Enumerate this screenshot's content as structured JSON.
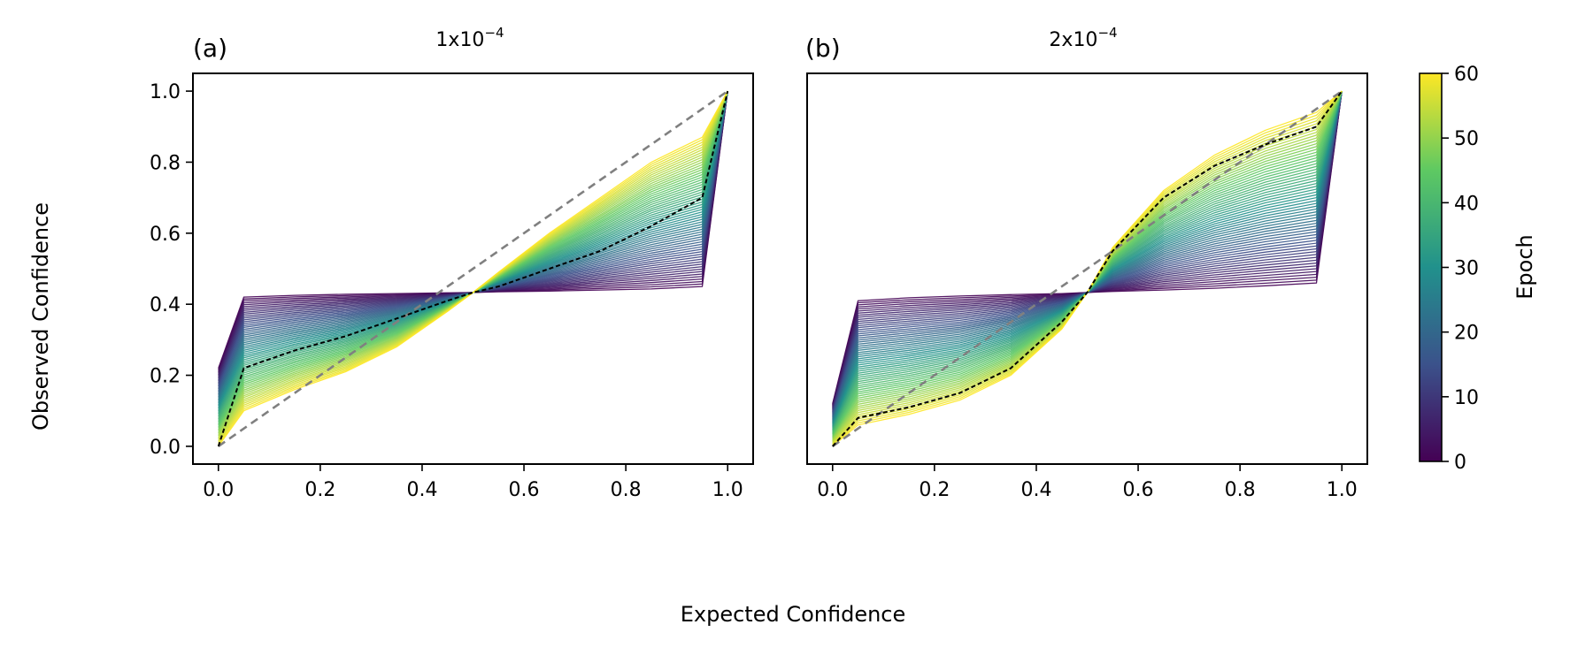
{
  "figure": {
    "xlabel": "Expected Confidence",
    "ylabel": "Observed Confidence"
  },
  "colorbar": {
    "label": "Epoch",
    "range": [
      0,
      60
    ],
    "ticks": [
      0,
      10,
      20,
      30,
      40,
      50,
      60
    ],
    "colormap": "viridis",
    "colors": [
      "#440154",
      "#3b528b",
      "#21918c",
      "#5ec962",
      "#fde725"
    ]
  },
  "chart_data": [
    {
      "type": "line",
      "panel_label": "(a)",
      "title_mantissa": "1x10",
      "title_exponent": "−4",
      "xlim": [
        -0.05,
        1.05
      ],
      "ylim": [
        -0.05,
        1.05
      ],
      "xticks": [
        0.0,
        0.2,
        0.4,
        0.6,
        0.8,
        1.0
      ],
      "yticks": [
        0.0,
        0.2,
        0.4,
        0.6,
        0.8,
        1.0
      ],
      "x": [
        0.0,
        0.05,
        0.15,
        0.25,
        0.35,
        0.45,
        0.5,
        0.55,
        0.65,
        0.75,
        0.85,
        0.95,
        1.0
      ],
      "series_count": 61,
      "epoch_first": {
        "epoch": 0,
        "values": [
          0.22,
          0.42,
          0.425,
          0.428,
          0.43,
          0.432,
          0.433,
          0.435,
          0.437,
          0.44,
          0.443,
          0.45,
          1.0
        ]
      },
      "epoch_last": {
        "epoch": 60,
        "values": [
          0.0,
          0.1,
          0.16,
          0.21,
          0.28,
          0.38,
          0.433,
          0.49,
          0.6,
          0.7,
          0.8,
          0.87,
          1.0
        ]
      },
      "reference_line": {
        "style": "dashed",
        "color": "#808080",
        "values": [
          0.0,
          0.05,
          0.15,
          0.25,
          0.35,
          0.45,
          0.5,
          0.55,
          0.65,
          0.75,
          0.85,
          0.95,
          1.0
        ]
      },
      "highlight_line": {
        "style": "dashed",
        "color": "#000000",
        "values": [
          0.0,
          0.22,
          0.27,
          0.31,
          0.36,
          0.41,
          0.433,
          0.45,
          0.5,
          0.55,
          0.62,
          0.7,
          1.0
        ]
      }
    },
    {
      "type": "line",
      "panel_label": "(b)",
      "title_mantissa": "2x10",
      "title_exponent": "−4",
      "xlim": [
        -0.05,
        1.05
      ],
      "ylim": [
        -0.05,
        1.05
      ],
      "xticks": [
        0.0,
        0.2,
        0.4,
        0.6,
        0.8,
        1.0
      ],
      "yticks": [],
      "x": [
        0.0,
        0.05,
        0.15,
        0.25,
        0.35,
        0.45,
        0.5,
        0.55,
        0.65,
        0.75,
        0.85,
        0.95,
        1.0
      ],
      "series_count": 61,
      "epoch_first": {
        "epoch": 0,
        "values": [
          0.12,
          0.41,
          0.418,
          0.423,
          0.427,
          0.43,
          0.433,
          0.436,
          0.44,
          0.445,
          0.452,
          0.46,
          1.0
        ]
      },
      "epoch_last": {
        "epoch": 60,
        "values": [
          0.0,
          0.06,
          0.09,
          0.13,
          0.2,
          0.33,
          0.433,
          0.56,
          0.72,
          0.82,
          0.89,
          0.94,
          1.0
        ]
      },
      "reference_line": {
        "style": "dashed",
        "color": "#808080",
        "values": [
          0.0,
          0.05,
          0.15,
          0.25,
          0.35,
          0.45,
          0.5,
          0.55,
          0.65,
          0.75,
          0.85,
          0.95,
          1.0
        ]
      },
      "highlight_line": {
        "style": "dashed",
        "color": "#000000",
        "values": [
          0.0,
          0.08,
          0.11,
          0.15,
          0.22,
          0.35,
          0.433,
          0.55,
          0.7,
          0.79,
          0.85,
          0.9,
          1.0
        ]
      }
    }
  ]
}
